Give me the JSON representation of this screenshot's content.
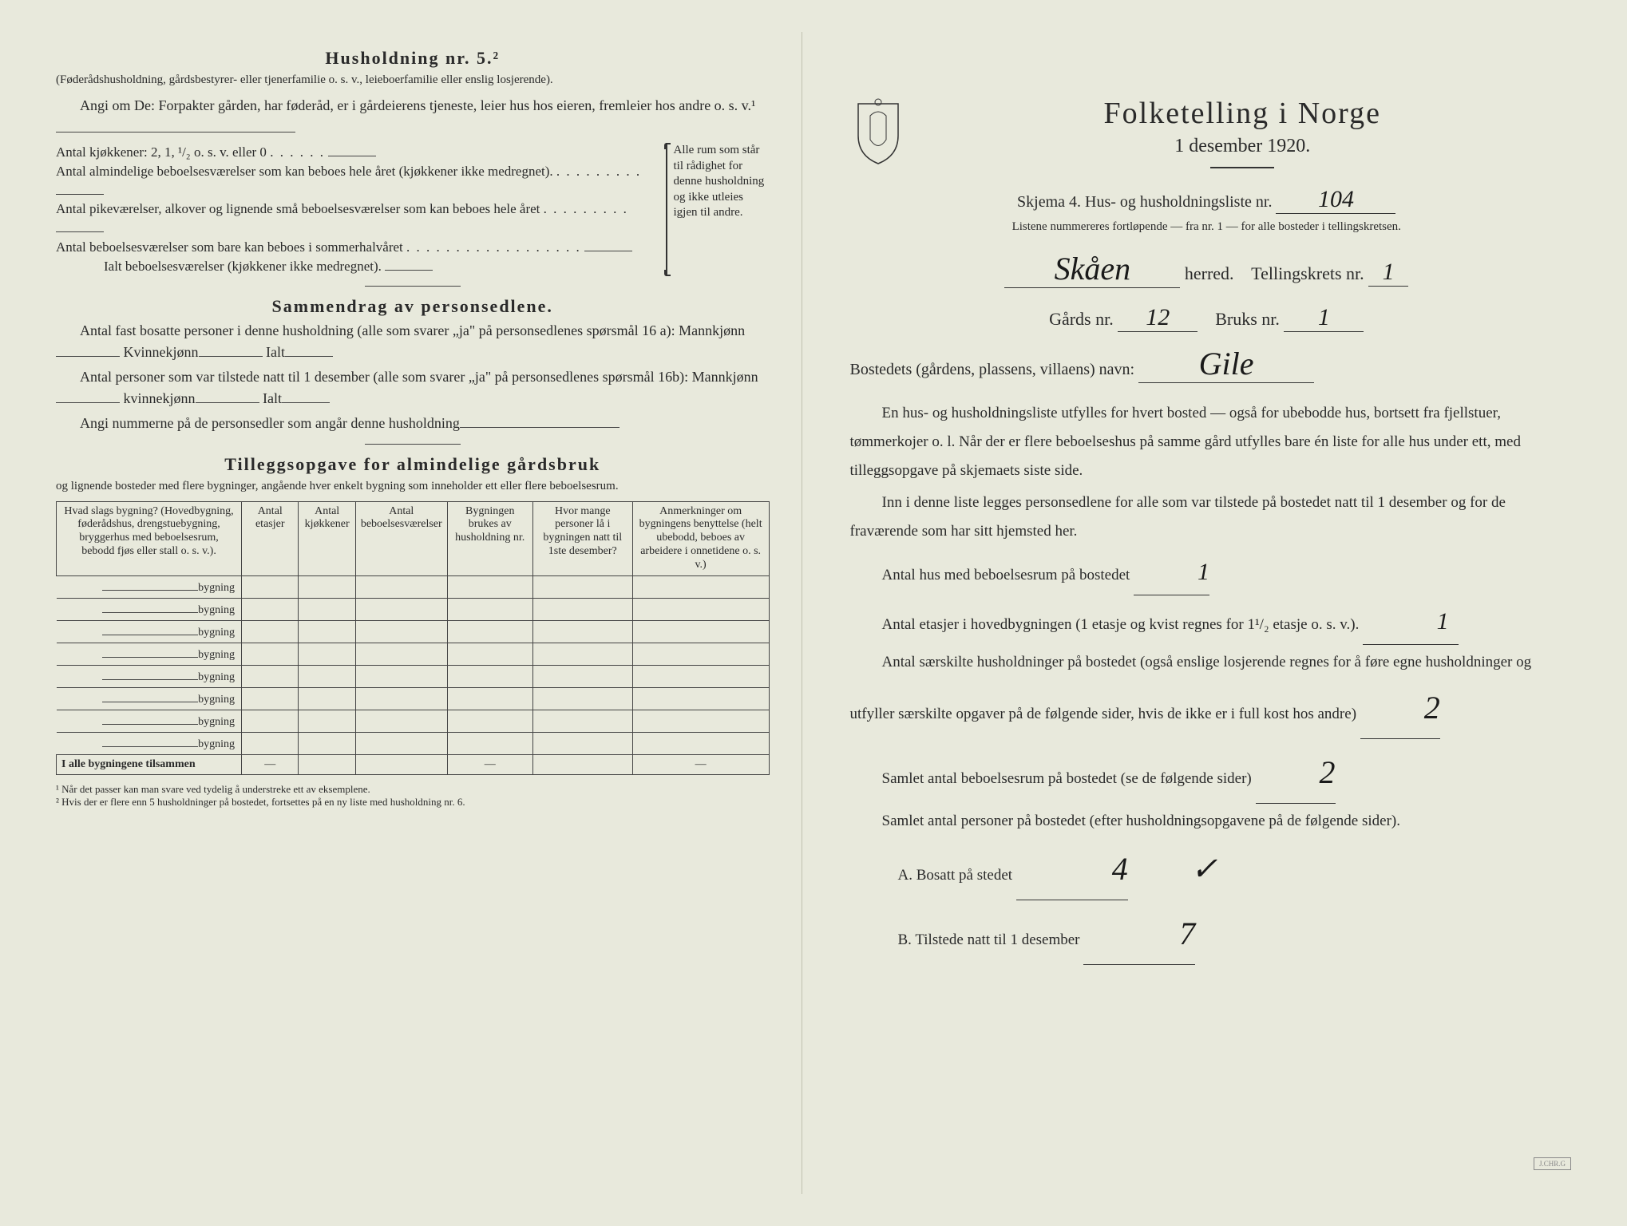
{
  "left": {
    "heading": "Husholdning nr. 5.²",
    "subheading": "(Føderådshusholdning, gårdsbestyrer- eller tjenerfamilie o. s. v., leieboerfamilie eller enslig losjerende).",
    "angi_intro": "Angi om De: Forpakter gården, har føderåd, er i gårdeierens tjeneste, leier hus hos eieren, fremleier hos andre o. s. v.¹",
    "kitchen_line": "Antal kjøkkener: 2, 1, ¹/₂ o. s. v. eller 0",
    "brace_lines": [
      "Antal almindelige beboelsesværelser som kan beboes hele året (kjøkkener ikke medregnet).",
      "Antal pikeværelser, alkover og lignende små beboelsesværelser som kan beboes hele året",
      "Antal beboelsesværelser som bare kan beboes i sommerhalvåret",
      "Ialt beboelsesværelser (kjøkkener ikke medregnet)."
    ],
    "brace_right": "Alle rum som står til rådighet for denne husholdning og ikke utleies igjen til andre.",
    "summary_head": "Sammendrag av personsedlene.",
    "summary_p1a": "Antal fast bosatte personer i denne husholdning (alle som svarer „ja\" på personsedlenes spørsmål 16 a): Mannkjønn",
    "summary_p1b": "Kvinnekjønn",
    "summary_p1c": "Ialt",
    "summary_p2a": "Antal personer som var tilstede natt til 1 desember (alle som svarer „ja\" på personsedlenes spørsmål 16b): Mannkjønn",
    "summary_p2b": "kvinnekjønn",
    "summary_p2c": "Ialt",
    "summary_p3": "Angi nummerne på de personsedler som angår denne husholdning",
    "tillegg_head": "Tilleggsopgave for almindelige gårdsbruk",
    "tillegg_sub": "og lignende bosteder med flere bygninger, angående hver enkelt bygning som inneholder ett eller flere beboelsesrum.",
    "table": {
      "headers": [
        "Hvad slags bygning?\n(Hovedbygning, føderådshus, drengstuebygning, bryggerhus med beboelsesrum, bebodd fjøs eller stall o. s. v.).",
        "Antal etasjer",
        "Antal kjøkkener",
        "Antal beboelsesværelser",
        "Bygningen brukes av husholdning nr.",
        "Hvor mange personer lå i bygningen natt til 1ste desember?",
        "Anmerkninger om bygningens benyttelse (helt ubebodd, beboes av arbeidere i onnetidene o. s. v.)"
      ],
      "row_label": "bygning",
      "row_count": 8,
      "total_label": "I alle bygningene tilsammen"
    },
    "footnotes": [
      "¹ Når det passer kan man svare ved tydelig å understreke ett av eksemplene.",
      "² Hvis der er flere enn 5 husholdninger på bostedet, fortsettes på en ny liste med husholdning nr. 6."
    ]
  },
  "right": {
    "title": "Folketelling i Norge",
    "date": "1 desember 1920.",
    "skjema": "Skjema 4.  Hus- og husholdningsliste nr.",
    "skjema_nr": "104",
    "listene": "Listene nummereres fortløpende — fra nr. 1 — for alle bosteder i tellingskretsen.",
    "herred_value": "Skåen",
    "herred_label": "herred.",
    "tellingskrets_label": "Tellingskrets nr.",
    "tellingskrets_nr": "1",
    "gards_label": "Gårds nr.",
    "gards_nr": "12",
    "bruks_label": "Bruks nr.",
    "bruks_nr": "1",
    "bosted_label": "Bostedets (gårdens, plassens, villaens) navn:",
    "bosted_value": "Gile",
    "body": [
      "En hus- og husholdningsliste utfylles for hvert bosted — også for ubebodde hus, bortsett fra fjellstuer, tømmerkojer o. l.  Når der er flere beboelseshus på samme gård utfylles bare én liste for alle hus under ett, med tilleggsopgave på skjemaets siste side.",
      "Inn i denne liste legges personsedlene for alle som var tilstede på bostedet natt til 1 desember og for de fraværende som har sitt hjemsted her."
    ],
    "antal_hus_label": "Antal hus med beboelsesrum på bostedet",
    "antal_hus": "1",
    "antal_etasjer_label_a": "Antal etasjer i hovedbygningen (1 etasje og kvist regnes for 1¹/₂ etasje o. s. v.).",
    "antal_etasjer": "1",
    "antal_saerskilte": "Antal særskilte husholdninger på bostedet (også enslige losjerende regnes for å føre egne husholdninger og utfyller særskilte opgaver på de følgende sider, hvis de ikke er i full kost hos andre)",
    "antal_saerskilte_val": "2",
    "samlet_rum_label": "Samlet antal beboelsesrum på bostedet (se de følgende sider)",
    "samlet_rum": "2",
    "samlet_pers_label": "Samlet antal personer på bostedet (efter husholdningsopgavene på de følgende sider).",
    "a_label": "A.  Bosatt på stedet",
    "a_val": "4",
    "b_label": "B.  Tilstede natt til 1 desember",
    "b_val": "7",
    "checkmark": "✓"
  },
  "colors": {
    "paper": "#e8e9dc",
    "ink": "#2a2a2a",
    "handwriting": "#1a1a1a",
    "rule": "#444444"
  }
}
